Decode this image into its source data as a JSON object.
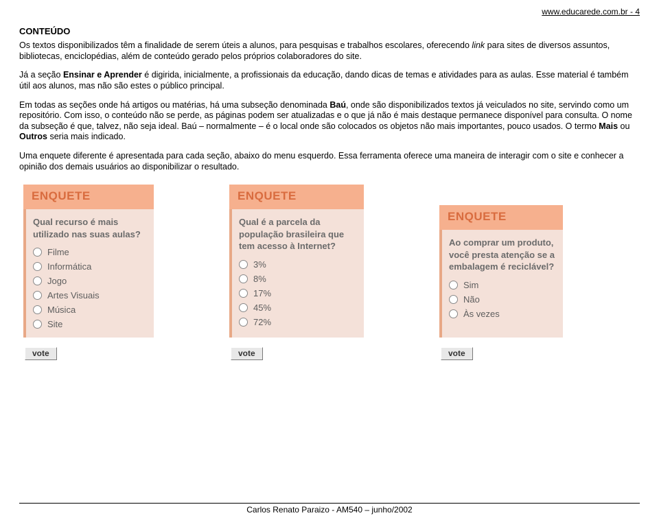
{
  "header_url": "www.educarede.com.br - 4",
  "section_title": "CONTEÚDO",
  "p1a": "Os textos disponibilizados têm a finalidade de serem úteis a alunos, para pesquisas e trabalhos escolares, oferecendo ",
  "p1_link": "link",
  "p1b": " para sites de diversos assuntos, bibliotecas, enciclopédias, além de conteúdo gerado pelos próprios colaboradores do site.",
  "p2a": "Já a seção ",
  "p2_bold": "Ensinar e Aprender",
  "p2b": " é digirida, inicialmente, a profissionais da educação, dando dicas de temas e atividades para as aulas. Esse material é também útil aos alunos, mas não são estes o público principal.",
  "p3a": "Em todas as seções onde há artigos ou matérias, há uma subseção denominada ",
  "p3_bold1": "Baú",
  "p3b": ", onde são disponibilizados textos já veiculados no site, servindo como um repositório. Com isso, o conteúdo não se perde, as páginas podem ser atualizadas e o que já não é mais destaque permanece disponível para consulta. O nome da subseção é que, talvez, não seja ideal. Baú – normalmente – é o local onde são colocados os objetos não mais importantes, pouco usados. O termo ",
  "p3_bold2": "Mais",
  "p3c": " ou ",
  "p3_bold3": "Outros",
  "p3d": " seria mais indicado.",
  "p4": "Uma enquete diferente é apresentada para cada seção, abaixo do menu esquerdo. Essa ferramenta oferece uma maneira de interagir com o site e conhecer a opinião dos demais usuários ao disponibilizar o resultado.",
  "enquete_header": "ENQUETE",
  "vote_label": "vote",
  "enquetes": [
    {
      "question": "Qual recurso é mais utilizado nas suas aulas?",
      "options": [
        "Filme",
        "Informática",
        "Jogo",
        "Artes Visuais",
        "Música",
        "Site"
      ]
    },
    {
      "question": "Qual é a parcela da população brasileira que tem acesso à Internet?",
      "options": [
        "3%",
        "8%",
        "17%",
        "45%",
        "72%"
      ]
    },
    {
      "question": "Ao comprar um produto, você presta atenção se a embalagem é reciclável?",
      "options": [
        "Sim",
        "Não",
        "Às vezes"
      ]
    }
  ],
  "footer": "Carlos Renato Paraizo - AM540 – junho/2002",
  "colors": {
    "header_bg": "#f6b08e",
    "header_text": "#d96c3f",
    "body_bg": "#f4e1d9",
    "border_left": "#e8a886",
    "question_text": "#6b6b6b",
    "option_text": "#5e5e5e"
  }
}
